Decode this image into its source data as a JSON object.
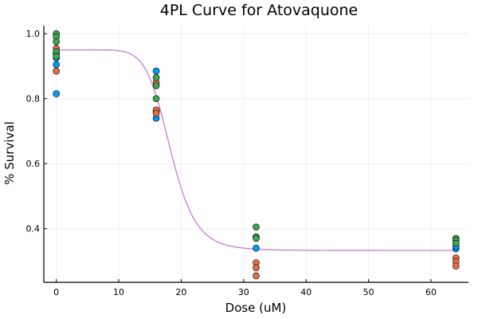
{
  "chart_data": {
    "type": "scatter",
    "title": "4PL Curve for Atovaquone",
    "xlabel": "Dose (uM)",
    "ylabel": "% Survival",
    "xlim": [
      -2,
      66
    ],
    "ylim": [
      0.235,
      1.025
    ],
    "xticks": [
      0,
      10,
      20,
      30,
      40,
      50,
      60
    ],
    "yticks": [
      0.4,
      0.6,
      0.8,
      1.0
    ],
    "ytick_labels": [
      "0.4",
      "0.6",
      "0.8",
      "1.0"
    ],
    "grid": true,
    "legend": "none",
    "series": [
      {
        "color": "#009AFA",
        "points": [
          [
            0,
            0.815
          ],
          [
            0,
            0.905
          ],
          [
            0,
            0.925
          ],
          [
            0,
            0.94
          ],
          [
            16,
            0.885
          ],
          [
            16,
            0.76
          ],
          [
            16,
            0.74
          ],
          [
            32,
            0.34
          ],
          [
            64,
            0.338
          ],
          [
            64,
            0.345
          ]
        ]
      },
      {
        "color": "#E36F47",
        "points": [
          [
            0,
            0.885
          ],
          [
            0,
            0.955
          ],
          [
            16,
            0.85
          ],
          [
            16,
            0.765
          ],
          [
            16,
            0.755
          ],
          [
            32,
            0.295
          ],
          [
            32,
            0.28
          ],
          [
            32,
            0.255
          ],
          [
            64,
            0.31
          ],
          [
            64,
            0.298
          ],
          [
            64,
            0.285
          ]
        ]
      },
      {
        "color": "#3EA44E",
        "points": [
          [
            0,
            1.0
          ],
          [
            0,
            0.99
          ],
          [
            0,
            0.975
          ],
          [
            0,
            0.945
          ],
          [
            0,
            0.93
          ],
          [
            16,
            0.865
          ],
          [
            16,
            0.84
          ],
          [
            16,
            0.8
          ],
          [
            32,
            0.405
          ],
          [
            32,
            0.375
          ],
          [
            32,
            0.37
          ],
          [
            64,
            0.37
          ],
          [
            64,
            0.365
          ],
          [
            64,
            0.355
          ]
        ]
      }
    ],
    "fit_curve": {
      "color": "#C271D2",
      "top": 0.95,
      "bottom": 0.333,
      "ec50": 18.3,
      "hill": 9,
      "x_range": [
        0,
        64
      ]
    }
  }
}
